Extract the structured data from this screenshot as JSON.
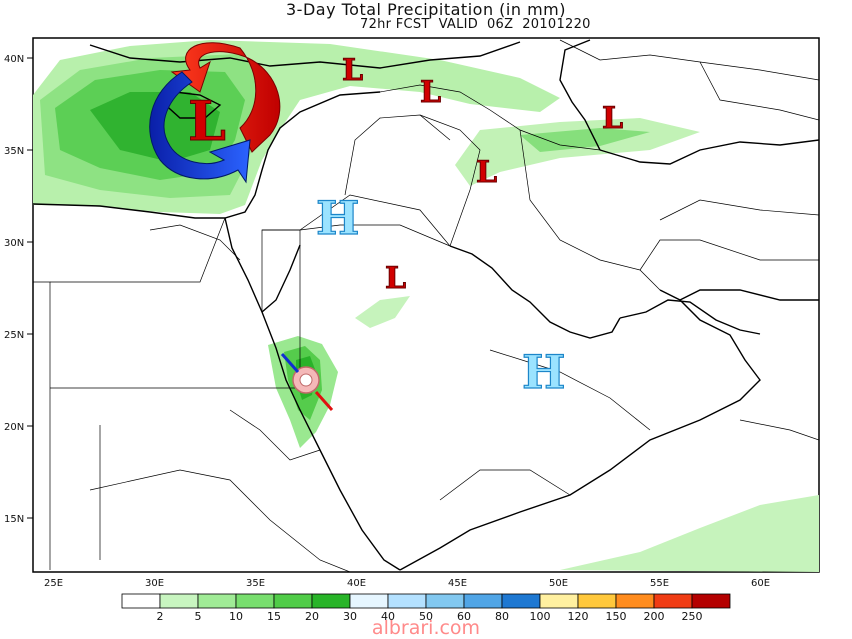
{
  "title": "3-Day Total Precipitation (in mm)",
  "subtitle": "72hr FCST  VALID  06Z  20101220",
  "lat_labels": [
    "40N",
    "35N",
    "30N",
    "25N",
    "20N",
    "15N"
  ],
  "lon_labels": [
    "25E",
    "30E",
    "35E",
    "40E",
    "45E",
    "50E",
    "55E",
    "60E"
  ],
  "pressure_systems": [
    "L",
    "L",
    "L",
    "L",
    "L",
    "L",
    "H",
    "H"
  ],
  "colorbar": {
    "labels": [
      "2",
      "5",
      "10",
      "15",
      "20",
      "30",
      "40",
      "50",
      "60",
      "80",
      "100",
      "120",
      "150",
      "200",
      "250"
    ],
    "colors": [
      "#ffffff",
      "#c8f5c0",
      "#a0eb96",
      "#78de6e",
      "#50cc48",
      "#28b428",
      "#e6f6ff",
      "#b4e1ff",
      "#82c8f0",
      "#50a5e6",
      "#1e78d2",
      "#fff0a0",
      "#ffc83c",
      "#ff8c1e",
      "#f03c14",
      "#b40000"
    ]
  },
  "credit": "albrari.com"
}
